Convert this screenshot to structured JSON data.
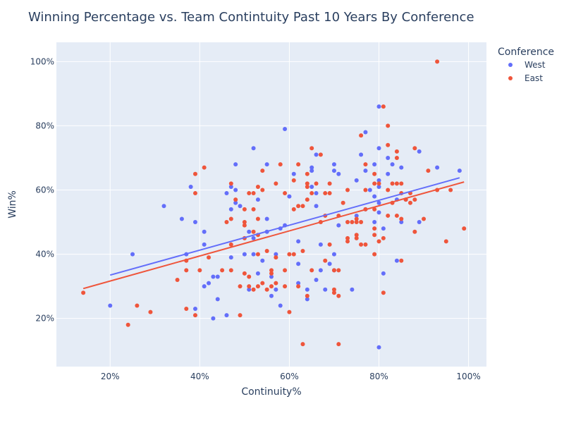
{
  "chart_data": {
    "type": "scatter",
    "title": "Winning Percentage vs. Team Contintuity Past 10 Years By Conference",
    "xlabel": "Continuity%",
    "ylabel": "Win%",
    "xlim": [
      0.08,
      1.04
    ],
    "ylim": [
      0.05,
      1.06
    ],
    "x_ticks": [
      0.2,
      0.4,
      0.6,
      0.8,
      1.0
    ],
    "x_tick_labels": [
      "20%",
      "40%",
      "60%",
      "80%",
      "100%"
    ],
    "y_ticks": [
      0.2,
      0.4,
      0.6,
      0.8,
      1.0
    ],
    "y_tick_labels": [
      "20%",
      "40%",
      "60%",
      "80%",
      "100%"
    ],
    "grid": true,
    "legend": {
      "title": "Conference",
      "placement": "top-right"
    },
    "series": [
      {
        "name": "West",
        "color": "#636efa",
        "trendline": [
          [
            0.2,
            0.335
          ],
          [
            0.98,
            0.638
          ]
        ],
        "points": [
          [
            0.2,
            0.24
          ],
          [
            0.25,
            0.4
          ],
          [
            0.32,
            0.55
          ],
          [
            0.36,
            0.51
          ],
          [
            0.37,
            0.4
          ],
          [
            0.38,
            0.61
          ],
          [
            0.39,
            0.5
          ],
          [
            0.39,
            0.23
          ],
          [
            0.41,
            0.47
          ],
          [
            0.41,
            0.43
          ],
          [
            0.41,
            0.3
          ],
          [
            0.42,
            0.31
          ],
          [
            0.43,
            0.33
          ],
          [
            0.43,
            0.2
          ],
          [
            0.44,
            0.26
          ],
          [
            0.44,
            0.33
          ],
          [
            0.46,
            0.59
          ],
          [
            0.46,
            0.21
          ],
          [
            0.47,
            0.61
          ],
          [
            0.47,
            0.54
          ],
          [
            0.47,
            0.39
          ],
          [
            0.48,
            0.68
          ],
          [
            0.48,
            0.6
          ],
          [
            0.48,
            0.56
          ],
          [
            0.49,
            0.55
          ],
          [
            0.5,
            0.4
          ],
          [
            0.51,
            0.47
          ],
          [
            0.51,
            0.29
          ],
          [
            0.52,
            0.73
          ],
          [
            0.52,
            0.45
          ],
          [
            0.52,
            0.4
          ],
          [
            0.53,
            0.57
          ],
          [
            0.53,
            0.34
          ],
          [
            0.54,
            0.38
          ],
          [
            0.55,
            0.68
          ],
          [
            0.55,
            0.51
          ],
          [
            0.55,
            0.47
          ],
          [
            0.56,
            0.33
          ],
          [
            0.56,
            0.27
          ],
          [
            0.57,
            0.4
          ],
          [
            0.57,
            0.29
          ],
          [
            0.58,
            0.48
          ],
          [
            0.58,
            0.24
          ],
          [
            0.59,
            0.79
          ],
          [
            0.59,
            0.49
          ],
          [
            0.6,
            0.58
          ],
          [
            0.61,
            0.65
          ],
          [
            0.62,
            0.44
          ],
          [
            0.62,
            0.37
          ],
          [
            0.62,
            0.31
          ],
          [
            0.64,
            0.29
          ],
          [
            0.64,
            0.26
          ],
          [
            0.65,
            0.67
          ],
          [
            0.65,
            0.66
          ],
          [
            0.65,
            0.61
          ],
          [
            0.66,
            0.71
          ],
          [
            0.66,
            0.59
          ],
          [
            0.66,
            0.55
          ],
          [
            0.66,
            0.32
          ],
          [
            0.67,
            0.43
          ],
          [
            0.67,
            0.35
          ],
          [
            0.68,
            0.29
          ],
          [
            0.69,
            0.37
          ],
          [
            0.7,
            0.68
          ],
          [
            0.7,
            0.66
          ],
          [
            0.7,
            0.4
          ],
          [
            0.7,
            0.35
          ],
          [
            0.71,
            0.65
          ],
          [
            0.71,
            0.49
          ],
          [
            0.74,
            0.29
          ],
          [
            0.75,
            0.63
          ],
          [
            0.75,
            0.52
          ],
          [
            0.76,
            0.71
          ],
          [
            0.77,
            0.78
          ],
          [
            0.77,
            0.66
          ],
          [
            0.77,
            0.54
          ],
          [
            0.78,
            0.6
          ],
          [
            0.79,
            0.68
          ],
          [
            0.79,
            0.58
          ],
          [
            0.79,
            0.5
          ],
          [
            0.8,
            0.86
          ],
          [
            0.8,
            0.73
          ],
          [
            0.8,
            0.63
          ],
          [
            0.8,
            0.61
          ],
          [
            0.8,
            0.56
          ],
          [
            0.8,
            0.53
          ],
          [
            0.8,
            0.11
          ],
          [
            0.81,
            0.48
          ],
          [
            0.81,
            0.34
          ],
          [
            0.82,
            0.7
          ],
          [
            0.82,
            0.65
          ],
          [
            0.83,
            0.68
          ],
          [
            0.84,
            0.57
          ],
          [
            0.84,
            0.38
          ],
          [
            0.85,
            0.67
          ],
          [
            0.85,
            0.5
          ],
          [
            0.86,
            0.57
          ],
          [
            0.89,
            0.72
          ],
          [
            0.89,
            0.5
          ],
          [
            0.93,
            0.67
          ],
          [
            0.98,
            0.66
          ]
        ]
      },
      {
        "name": "East",
        "color": "#ef553b",
        "trendline": [
          [
            0.14,
            0.293
          ],
          [
            0.99,
            0.625
          ]
        ],
        "points": [
          [
            0.14,
            0.28
          ],
          [
            0.24,
            0.18
          ],
          [
            0.26,
            0.24
          ],
          [
            0.29,
            0.22
          ],
          [
            0.35,
            0.32
          ],
          [
            0.37,
            0.38
          ],
          [
            0.37,
            0.35
          ],
          [
            0.37,
            0.23
          ],
          [
            0.39,
            0.65
          ],
          [
            0.39,
            0.59
          ],
          [
            0.39,
            0.21
          ],
          [
            0.4,
            0.35
          ],
          [
            0.41,
            0.67
          ],
          [
            0.42,
            0.39
          ],
          [
            0.45,
            0.35
          ],
          [
            0.46,
            0.5
          ],
          [
            0.47,
            0.62
          ],
          [
            0.47,
            0.51
          ],
          [
            0.47,
            0.43
          ],
          [
            0.47,
            0.35
          ],
          [
            0.48,
            0.57
          ],
          [
            0.49,
            0.3
          ],
          [
            0.49,
            0.21
          ],
          [
            0.5,
            0.54
          ],
          [
            0.5,
            0.5
          ],
          [
            0.5,
            0.49
          ],
          [
            0.5,
            0.45
          ],
          [
            0.5,
            0.34
          ],
          [
            0.51,
            0.59
          ],
          [
            0.51,
            0.33
          ],
          [
            0.51,
            0.3
          ],
          [
            0.52,
            0.59
          ],
          [
            0.52,
            0.54
          ],
          [
            0.52,
            0.47
          ],
          [
            0.52,
            0.29
          ],
          [
            0.53,
            0.61
          ],
          [
            0.53,
            0.51
          ],
          [
            0.53,
            0.46
          ],
          [
            0.53,
            0.4
          ],
          [
            0.53,
            0.3
          ],
          [
            0.54,
            0.66
          ],
          [
            0.54,
            0.6
          ],
          [
            0.54,
            0.31
          ],
          [
            0.55,
            0.41
          ],
          [
            0.55,
            0.29
          ],
          [
            0.56,
            0.35
          ],
          [
            0.56,
            0.34
          ],
          [
            0.56,
            0.3
          ],
          [
            0.57,
            0.62
          ],
          [
            0.57,
            0.39
          ],
          [
            0.57,
            0.31
          ],
          [
            0.58,
            0.68
          ],
          [
            0.59,
            0.59
          ],
          [
            0.59,
            0.35
          ],
          [
            0.59,
            0.3
          ],
          [
            0.6,
            0.4
          ],
          [
            0.6,
            0.22
          ],
          [
            0.61,
            0.63
          ],
          [
            0.61,
            0.54
          ],
          [
            0.61,
            0.4
          ],
          [
            0.62,
            0.68
          ],
          [
            0.62,
            0.55
          ],
          [
            0.62,
            0.3
          ],
          [
            0.63,
            0.55
          ],
          [
            0.63,
            0.41
          ],
          [
            0.63,
            0.12
          ],
          [
            0.64,
            0.65
          ],
          [
            0.64,
            0.62
          ],
          [
            0.64,
            0.61
          ],
          [
            0.64,
            0.57
          ],
          [
            0.64,
            0.27
          ],
          [
            0.65,
            0.73
          ],
          [
            0.65,
            0.59
          ],
          [
            0.65,
            0.35
          ],
          [
            0.66,
            0.62
          ],
          [
            0.67,
            0.71
          ],
          [
            0.67,
            0.5
          ],
          [
            0.68,
            0.59
          ],
          [
            0.68,
            0.52
          ],
          [
            0.68,
            0.38
          ],
          [
            0.69,
            0.62
          ],
          [
            0.69,
            0.59
          ],
          [
            0.69,
            0.43
          ],
          [
            0.7,
            0.35
          ],
          [
            0.7,
            0.29
          ],
          [
            0.7,
            0.28
          ],
          [
            0.71,
            0.52
          ],
          [
            0.71,
            0.35
          ],
          [
            0.71,
            0.27
          ],
          [
            0.71,
            0.12
          ],
          [
            0.72,
            0.56
          ],
          [
            0.73,
            0.6
          ],
          [
            0.73,
            0.5
          ],
          [
            0.73,
            0.45
          ],
          [
            0.73,
            0.44
          ],
          [
            0.74,
            0.5
          ],
          [
            0.75,
            0.51
          ],
          [
            0.75,
            0.5
          ],
          [
            0.75,
            0.46
          ],
          [
            0.75,
            0.45
          ],
          [
            0.76,
            0.77
          ],
          [
            0.76,
            0.5
          ],
          [
            0.76,
            0.43
          ],
          [
            0.77,
            0.68
          ],
          [
            0.77,
            0.6
          ],
          [
            0.77,
            0.54
          ],
          [
            0.77,
            0.43
          ],
          [
            0.79,
            0.65
          ],
          [
            0.79,
            0.62
          ],
          [
            0.79,
            0.54
          ],
          [
            0.79,
            0.48
          ],
          [
            0.79,
            0.46
          ],
          [
            0.79,
            0.4
          ],
          [
            0.8,
            0.62
          ],
          [
            0.8,
            0.44
          ],
          [
            0.81,
            0.86
          ],
          [
            0.81,
            0.45
          ],
          [
            0.81,
            0.28
          ],
          [
            0.82,
            0.8
          ],
          [
            0.82,
            0.74
          ],
          [
            0.82,
            0.6
          ],
          [
            0.82,
            0.52
          ],
          [
            0.83,
            0.62
          ],
          [
            0.83,
            0.56
          ],
          [
            0.84,
            0.72
          ],
          [
            0.84,
            0.7
          ],
          [
            0.84,
            0.62
          ],
          [
            0.84,
            0.52
          ],
          [
            0.85,
            0.62
          ],
          [
            0.85,
            0.59
          ],
          [
            0.85,
            0.51
          ],
          [
            0.85,
            0.38
          ],
          [
            0.86,
            0.57
          ],
          [
            0.87,
            0.59
          ],
          [
            0.87,
            0.56
          ],
          [
            0.88,
            0.73
          ],
          [
            0.88,
            0.57
          ],
          [
            0.88,
            0.47
          ],
          [
            0.9,
            0.51
          ],
          [
            0.91,
            0.66
          ],
          [
            0.93,
            1.0
          ],
          [
            0.93,
            0.6
          ],
          [
            0.95,
            0.44
          ],
          [
            0.96,
            0.6
          ],
          [
            0.99,
            0.48
          ]
        ]
      }
    ]
  }
}
